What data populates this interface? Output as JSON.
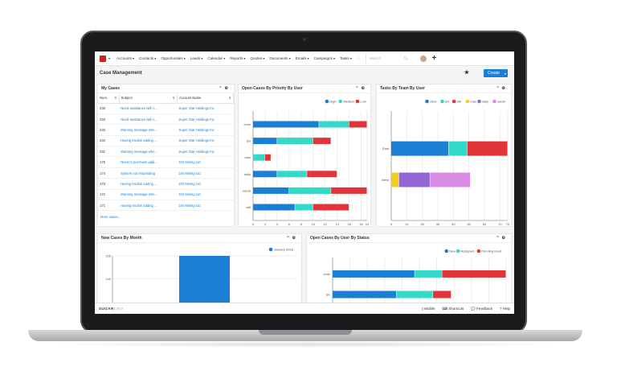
{
  "nav": {
    "items": [
      "Accounts",
      "Contacts",
      "Opportunities",
      "Leads",
      "Calendar",
      "Reports",
      "Quotes",
      "Documents",
      "Emails",
      "Campaigns",
      "Tasks"
    ],
    "more": "⋮",
    "search_placeholder": "Search"
  },
  "header": {
    "title": "Case Management",
    "create": "Create"
  },
  "my_cases": {
    "title": "My Cases",
    "columns": [
      "Num.",
      "Subject",
      "Account Name"
    ],
    "rows": [
      [
        "235",
        "Need assistance with I...",
        "Super Star Holdings Inc"
      ],
      [
        "234",
        "Need assistance with I...",
        "Super Star Holdings Inc"
      ],
      [
        "233",
        "Warning message whe...",
        "Super Star Holdings Inc"
      ],
      [
        "232",
        "Having trouble adding ...",
        "Super Star Holdings Inc"
      ],
      [
        "231",
        "Warning message whe...",
        "Super Star Holdings Inc"
      ],
      [
        "175",
        "Need to purchase addi...",
        "Dirt Mining Ltd"
      ],
      [
        "174",
        "System not responding",
        "Dirt Mining Ltd"
      ],
      [
        "173",
        "Having trouble adding ...",
        "Dirt Mining Ltd"
      ],
      [
        "172",
        "Warning message whe...",
        "Dirt Mining Ltd"
      ],
      [
        "171",
        "Having trouble adding ...",
        "Dirt Mining Ltd"
      ]
    ],
    "more": "More cases..."
  },
  "footer": {
    "brand": "SUGAR",
    "brand2": "CRM",
    "links": [
      "Mobile",
      "Shortcuts",
      "Feedback",
      "Help"
    ]
  },
  "chart_data": [
    {
      "title": "Open Cases By Priority By User",
      "type": "bar",
      "orientation": "horizontal",
      "stacked": true,
      "categories": [
        "chris",
        "jim",
        "max",
        "sally",
        "sarah",
        "will"
      ],
      "series": [
        {
          "name": "High",
          "color": "#1b7fd3",
          "values": [
            11,
            4,
            0,
            4,
            6,
            7
          ]
        },
        {
          "name": "Medium",
          "color": "#33d9c9",
          "values": [
            5,
            6,
            2,
            5,
            7,
            3
          ]
        },
        {
          "name": "Low",
          "color": "#e0363a",
          "values": [
            3,
            3,
            1,
            5,
            6,
            6
          ]
        }
      ],
      "xlim": [
        0,
        19
      ],
      "xticks": [
        0,
        2,
        4,
        6,
        8,
        10,
        12,
        14,
        16,
        18,
        19
      ],
      "legend": "top-right",
      "grid": true
    },
    {
      "title": "Tasks By Team By User",
      "type": "bar",
      "orientation": "horizontal",
      "stacked": true,
      "categories": [
        "East",
        "West"
      ],
      "series": [
        {
          "name": "chris",
          "color": "#1b7fd3",
          "values": [
            37,
            0
          ]
        },
        {
          "name": "jim",
          "color": "#33d9c9",
          "values": [
            12,
            0
          ]
        },
        {
          "name": "will",
          "color": "#e0363a",
          "values": [
            26,
            0
          ]
        },
        {
          "name": "max",
          "color": "#f5cc1e",
          "values": [
            0,
            5
          ]
        },
        {
          "name": "sally",
          "color": "#9467d6",
          "values": [
            0,
            20
          ]
        },
        {
          "name": "sarah",
          "color": "#db8ae6",
          "values": [
            0,
            26
          ]
        }
      ],
      "xlim": [
        0,
        75
      ],
      "xticks": [
        0,
        10,
        20,
        30,
        40,
        50,
        60,
        70,
        75
      ],
      "legend": "top-right",
      "grid": true
    },
    {
      "title": "New Cases By Month",
      "type": "bar",
      "categories": [
        "January 2018"
      ],
      "series": [
        {
          "name": "January 2018",
          "color": "#1b7fd3",
          "values": [
            155
          ]
        }
      ],
      "ylim": [
        95,
        155
      ],
      "yticks": [
        100,
        120,
        140,
        155
      ],
      "legend": "top-right",
      "grid": true
    },
    {
      "title": "Open Cases By User By Status",
      "type": "bar",
      "orientation": "horizontal",
      "stacked": true,
      "categories": [
        "chris",
        "jim",
        ""
      ],
      "series": [
        {
          "name": "New",
          "color": "#1b7fd3",
          "values": [
            9,
            7,
            0
          ]
        },
        {
          "name": "Assigned",
          "color": "#33d9c9",
          "values": [
            3,
            4,
            2
          ]
        },
        {
          "name": "Pending Input",
          "color": "#e0363a",
          "values": [
            7,
            2,
            1
          ]
        }
      ],
      "xlim": [
        0,
        19
      ],
      "legend": "top-right",
      "grid": true
    }
  ]
}
